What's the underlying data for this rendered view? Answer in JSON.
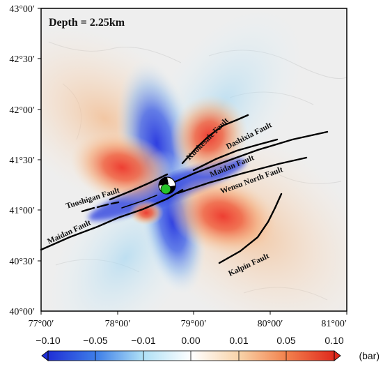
{
  "map": {
    "depth_label": "Depth = 2.25km",
    "lon_ticks": [
      "77°00′",
      "78°00′",
      "79°00′",
      "80°00′",
      "81°00′"
    ],
    "lat_ticks": [
      "43°00′",
      "42°30′",
      "42°00′",
      "41°30′",
      "41°00′",
      "40°30′",
      "40°00′"
    ],
    "faults": [
      {
        "id": "kuokesale",
        "name": "Kuokesale Fault"
      },
      {
        "id": "dashixia",
        "name": "Dashixia Fault"
      },
      {
        "id": "maidan-east",
        "name": "Maidan Fault"
      },
      {
        "id": "wensu-north",
        "name": "Wensu North Fault"
      },
      {
        "id": "tuoshigan",
        "name": "Tuoshigan Fault"
      },
      {
        "id": "maidan-west",
        "name": "Maidan Fault"
      },
      {
        "id": "kalpin",
        "name": "Kalpin Fault"
      }
    ],
    "colors": {
      "positive": "#e8392c",
      "negative": "#2a3bd9",
      "neutral": "#ffffff"
    }
  },
  "colorbar": {
    "ticks": [
      "−0.10",
      "−0.05",
      "−0.01",
      "0.00",
      "0.01",
      "0.05",
      "0.10"
    ],
    "unit": "(bar)"
  }
}
